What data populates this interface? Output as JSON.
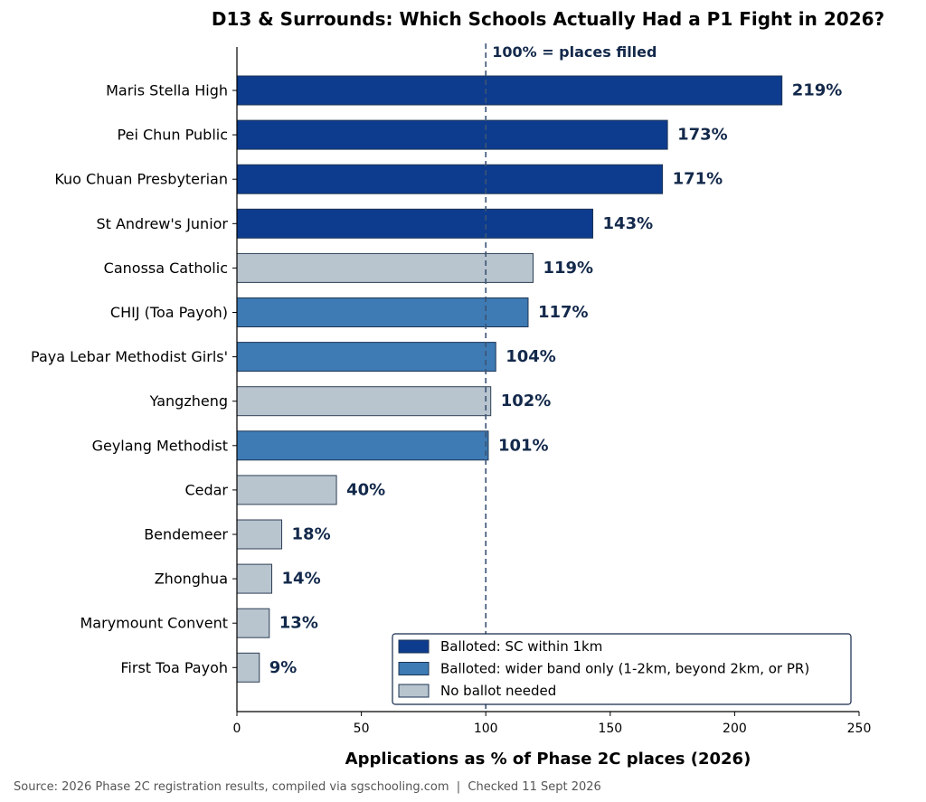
{
  "chart_data": {
    "type": "bar",
    "orientation": "horizontal",
    "title": "D13 & Surrounds: Which Schools Actually Had a P1 Fight in 2026?",
    "xlabel": "Applications as % of Phase 2C places (2026)",
    "ylabel": "",
    "xlim": [
      0,
      250
    ],
    "xticks": [
      0,
      50,
      100,
      150,
      200,
      250
    ],
    "value_suffix": "%",
    "reference_line": {
      "value": 100,
      "label": "100% = places filled"
    },
    "categories": [
      "Maris Stella High",
      "Pei Chun Public",
      "Kuo Chuan Presbyterian",
      "St Andrew's Junior",
      "Canossa Catholic",
      "CHIJ (Toa Payoh)",
      "Paya Lebar Methodist Girls'",
      "Yangzheng",
      "Geylang Methodist",
      "Cedar",
      "Bendemeer",
      "Zhonghua",
      "Marymount Convent",
      "First Toa Payoh"
    ],
    "values": [
      219,
      173,
      171,
      143,
      119,
      117,
      104,
      102,
      101,
      40,
      18,
      14,
      13,
      9
    ],
    "groups": [
      "sc",
      "sc",
      "sc",
      "sc",
      "none",
      "wide",
      "wide",
      "none",
      "wide",
      "none",
      "none",
      "none",
      "none",
      "none"
    ],
    "legend": {
      "position": "lower-right",
      "entries": [
        {
          "key": "sc",
          "label": "Balloted: SC within 1km",
          "color": "#0d3b8e"
        },
        {
          "key": "wide",
          "label": "Balloted: wider band only (1-2km, beyond 2km, or PR)",
          "color": "#3e7ab3"
        },
        {
          "key": "none",
          "label": "No ballot needed",
          "color": "#b8c4ce"
        }
      ]
    },
    "grid": false,
    "source": "Source: 2026 Phase 2C registration results, compiled via sgschooling.com  |  Checked 11 Sept 2026"
  }
}
